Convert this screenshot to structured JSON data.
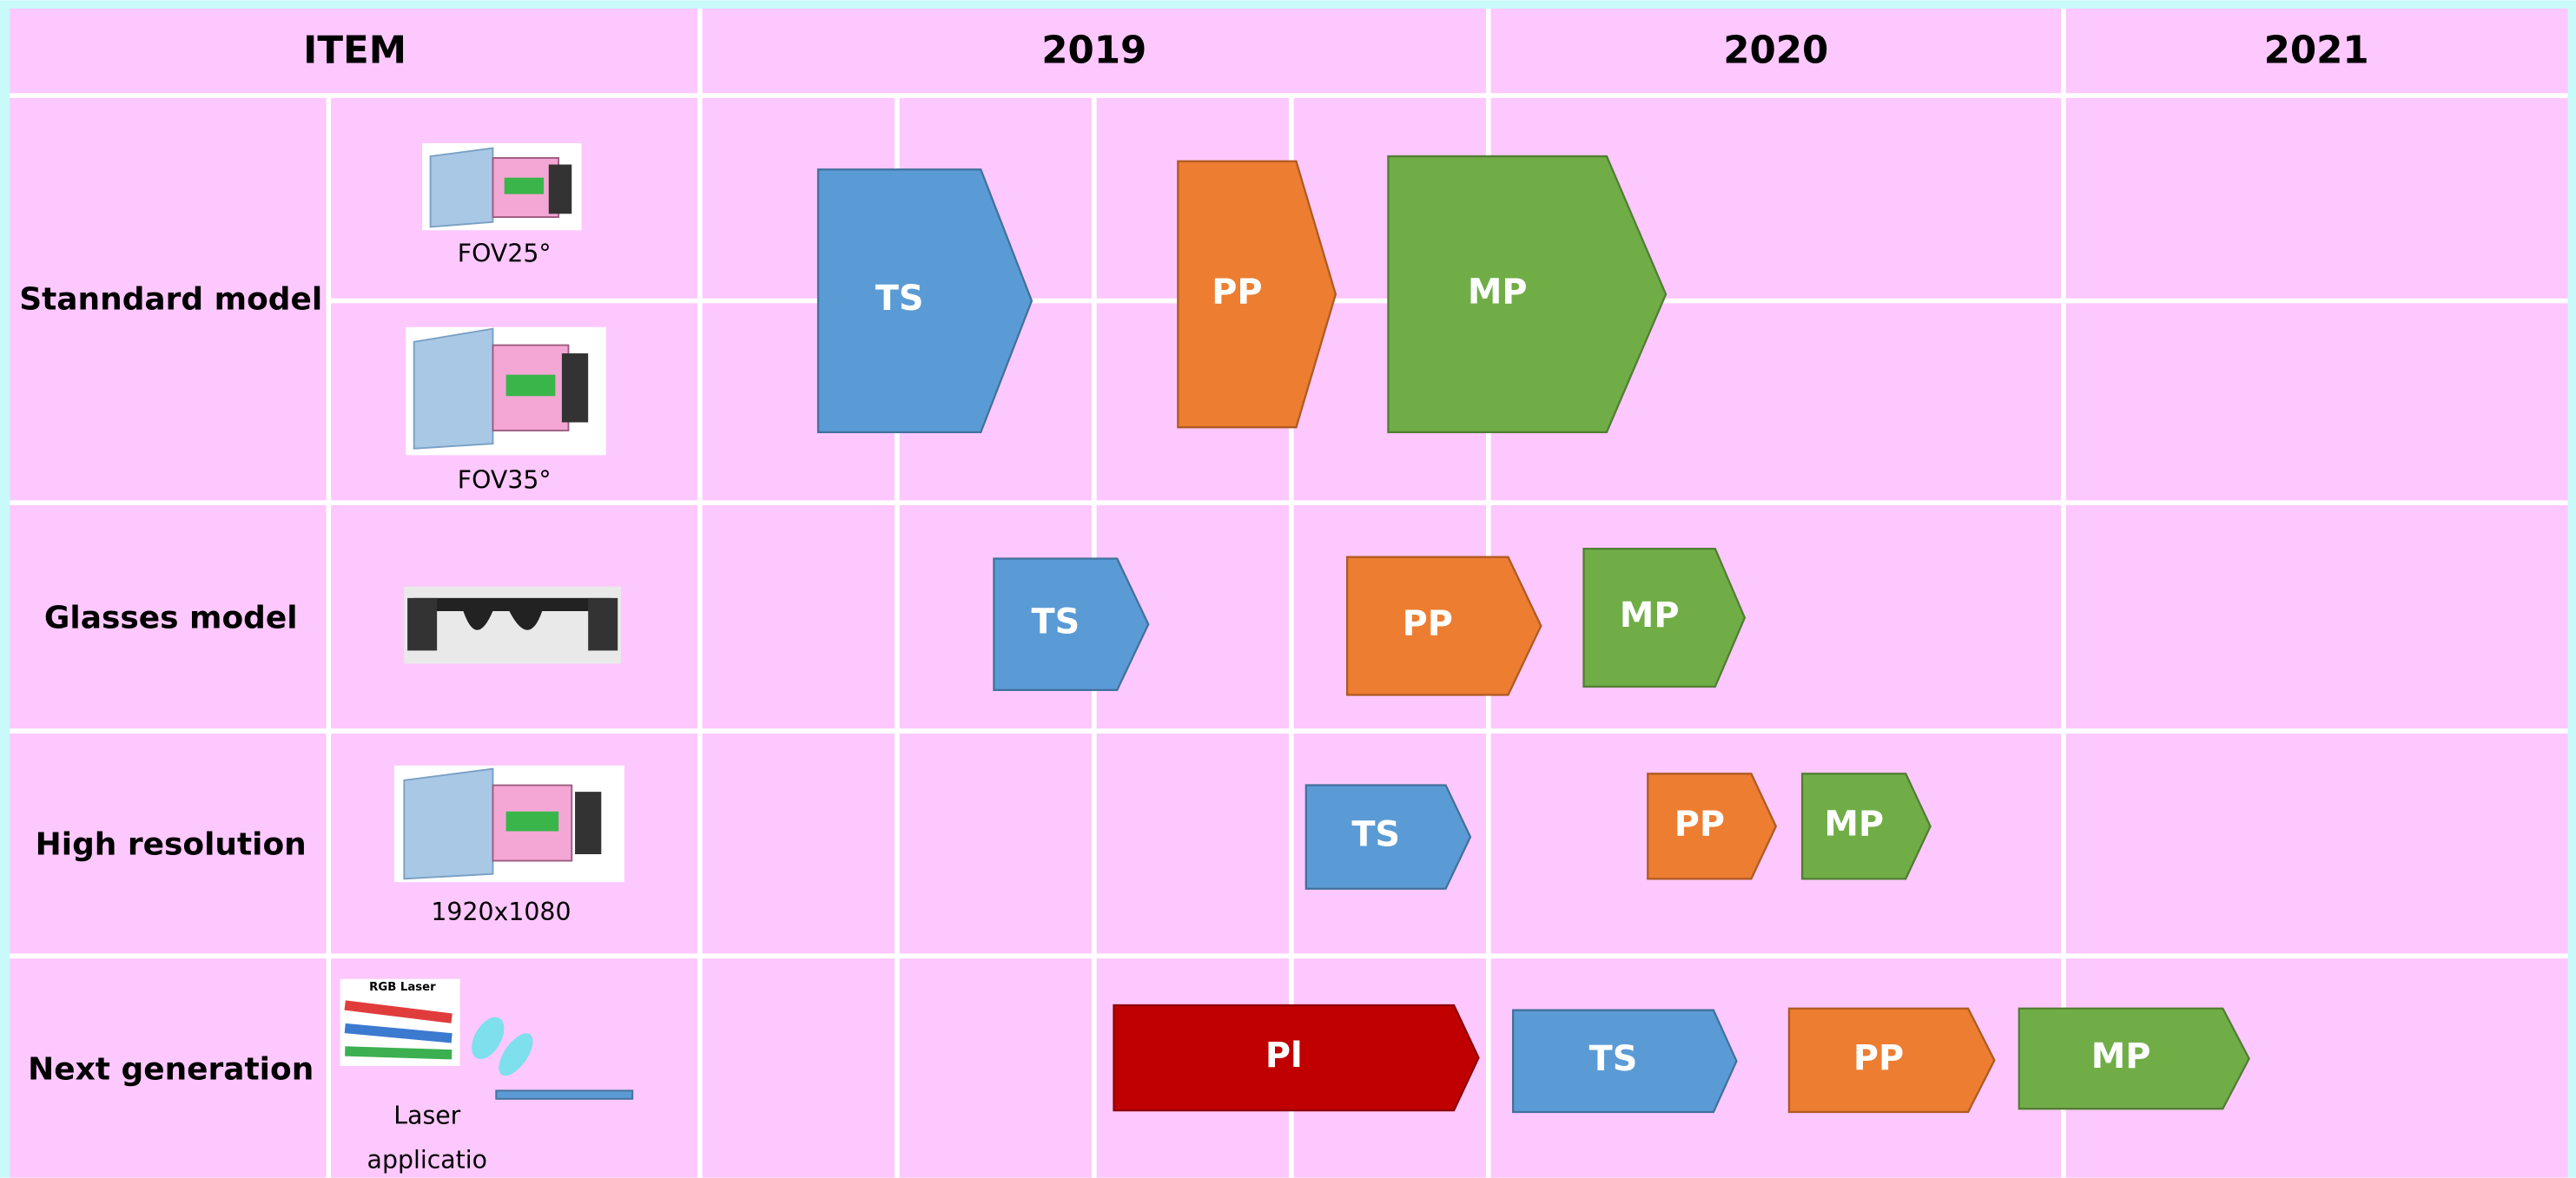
{
  "header": {
    "columns": [
      "ITEM",
      "2019",
      "2020",
      "2021"
    ]
  },
  "rows": [
    {
      "label": "Stanndard model",
      "images": [
        {
          "caption": "FOV25°"
        },
        {
          "caption": "FOV35°"
        }
      ],
      "milestones": [
        "TS",
        "PP",
        "MP"
      ]
    },
    {
      "label": "Glasses model",
      "milestones": [
        "TS",
        "PP",
        "MP"
      ]
    },
    {
      "label": "High resolution",
      "images": [
        {
          "caption": "1920x1080"
        }
      ],
      "milestones": [
        "TS",
        "PP",
        "MP"
      ]
    },
    {
      "label": "Next generation",
      "images": [
        {
          "inset": "RGB Laser",
          "caption": [
            "Laser",
            "applicatio"
          ]
        }
      ],
      "milestones": [
        "Pl",
        "TS",
        "PP",
        "MP"
      ]
    }
  ]
}
